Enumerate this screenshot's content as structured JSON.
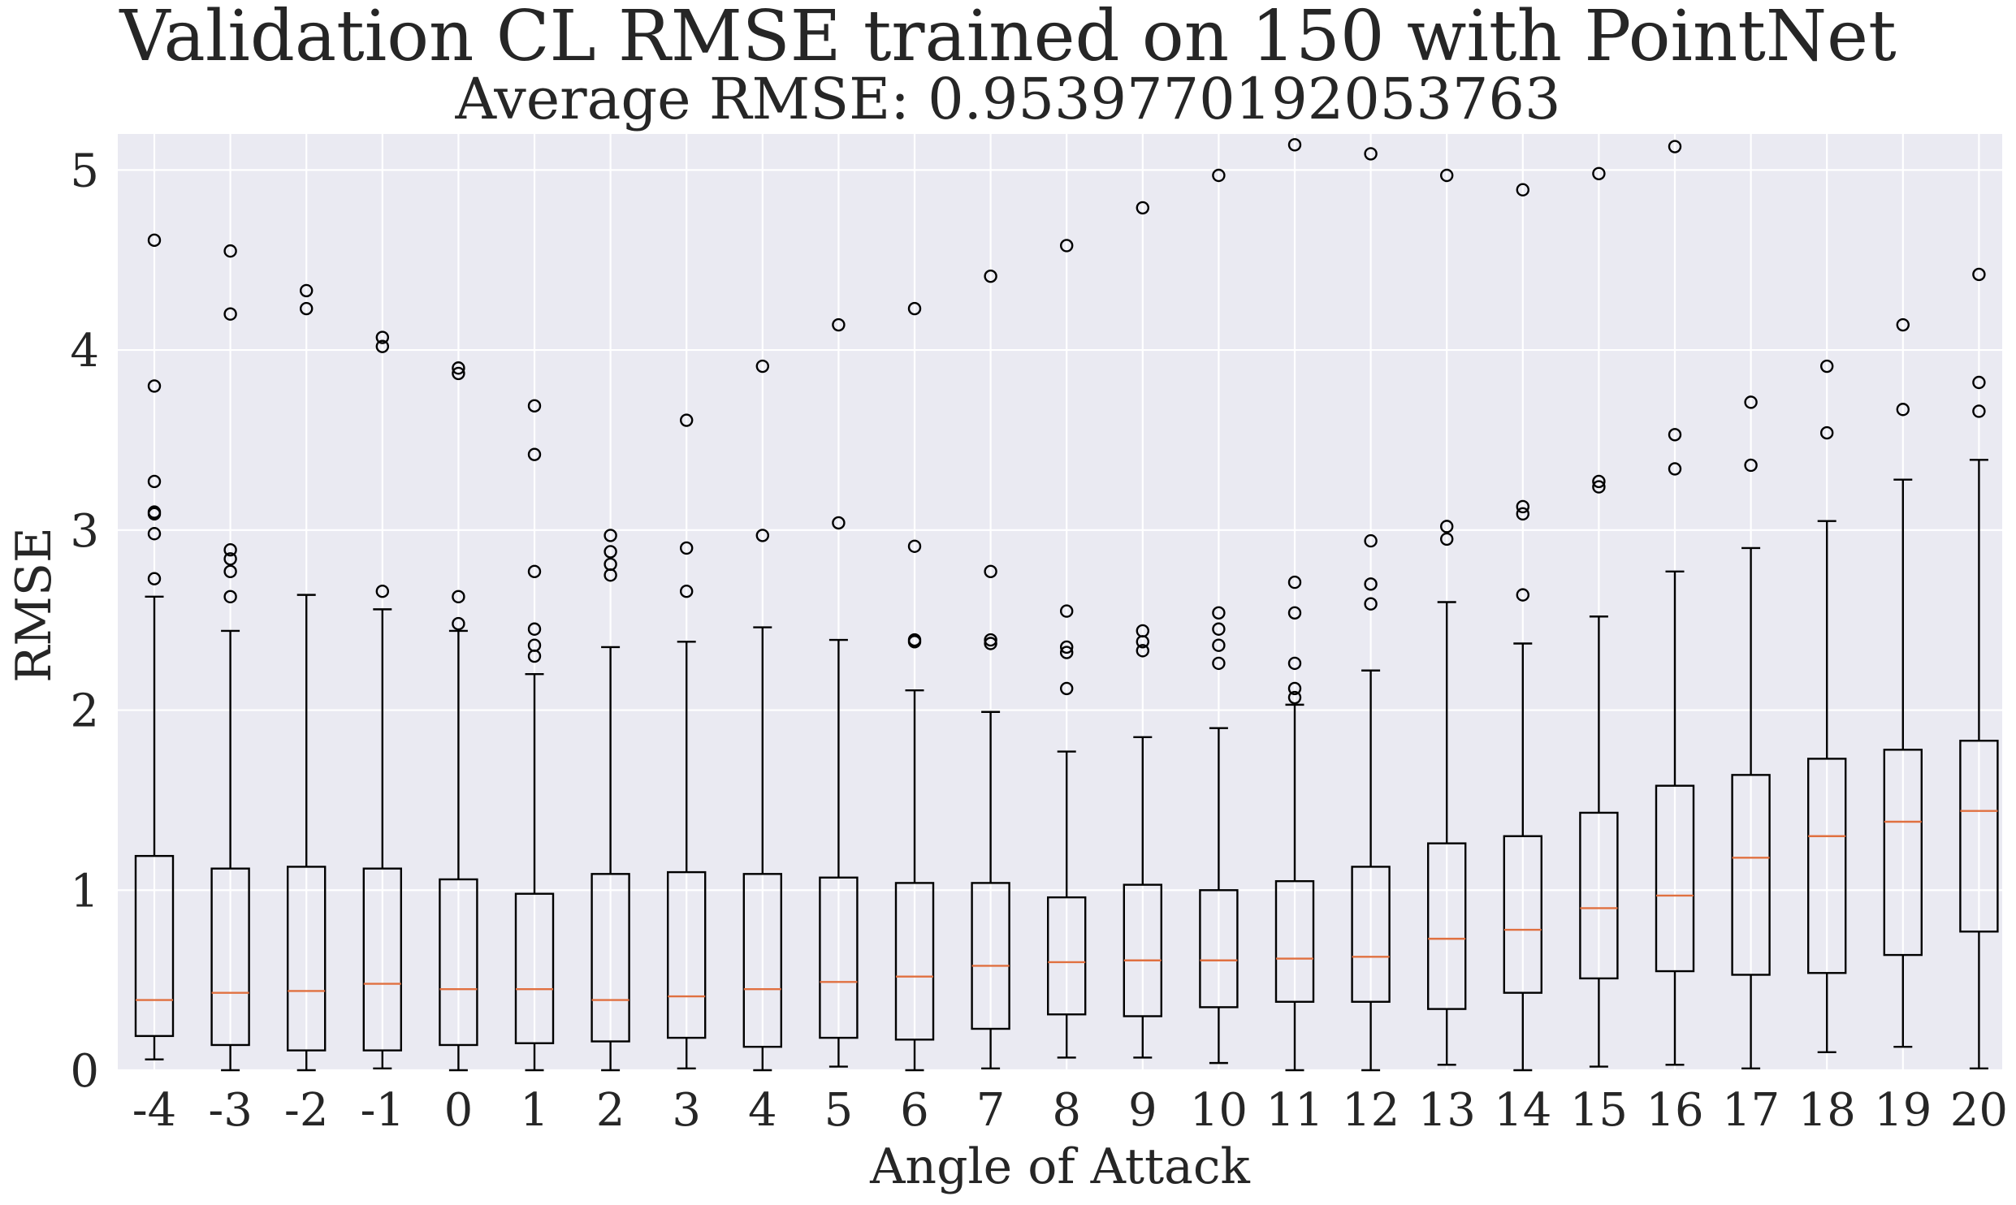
{
  "chart_data": {
    "type": "boxplot",
    "title": "Validation CL RMSE trained on 150 with PointNet",
    "subtitle": "Average RMSE:  0.9539770192053763",
    "xlabel": "Angle of Attack",
    "ylabel": "RMSE",
    "ylim": [
      0,
      5.2
    ],
    "yticks": [
      0,
      1,
      2,
      3,
      4,
      5
    ],
    "grid": true,
    "colors": {
      "background": "#eaeaf2",
      "grid": "#ffffff",
      "box": "#000000",
      "median": "#e07040",
      "text": "#262626"
    },
    "categories": [
      "-4",
      "-3",
      "-2",
      "-1",
      "0",
      "1",
      "2",
      "3",
      "4",
      "5",
      "6",
      "7",
      "8",
      "9",
      "10",
      "11",
      "12",
      "13",
      "14",
      "15",
      "16",
      "17",
      "18",
      "19",
      "20"
    ],
    "boxes": [
      {
        "label": "-4",
        "whislo": 0.06,
        "q1": 0.19,
        "med": 0.39,
        "q3": 1.19,
        "whishi": 2.63,
        "fliers": [
          2.73,
          2.98,
          3.09,
          3.1,
          3.27,
          3.8,
          4.61
        ]
      },
      {
        "label": "-3",
        "whislo": 0.0,
        "q1": 0.14,
        "med": 0.43,
        "q3": 1.12,
        "whishi": 2.44,
        "fliers": [
          2.63,
          2.77,
          2.84,
          2.89,
          4.2,
          4.55
        ]
      },
      {
        "label": "-2",
        "whislo": 0.0,
        "q1": 0.11,
        "med": 0.44,
        "q3": 1.13,
        "whishi": 2.64,
        "fliers": [
          4.23,
          4.33
        ]
      },
      {
        "label": "-1",
        "whislo": 0.01,
        "q1": 0.11,
        "med": 0.48,
        "q3": 1.12,
        "whishi": 2.56,
        "fliers": [
          2.66,
          4.02,
          4.07
        ]
      },
      {
        "label": "0",
        "whislo": 0.0,
        "q1": 0.14,
        "med": 0.45,
        "q3": 1.06,
        "whishi": 2.44,
        "fliers": [
          2.48,
          2.63,
          3.87,
          3.9
        ]
      },
      {
        "label": "1",
        "whislo": 0.0,
        "q1": 0.15,
        "med": 0.45,
        "q3": 0.98,
        "whishi": 2.2,
        "fliers": [
          2.3,
          2.36,
          2.45,
          2.77,
          3.42,
          3.69
        ]
      },
      {
        "label": "2",
        "whislo": 0.0,
        "q1": 0.16,
        "med": 0.39,
        "q3": 1.09,
        "whishi": 2.35,
        "fliers": [
          2.75,
          2.81,
          2.88,
          2.97
        ]
      },
      {
        "label": "3",
        "whislo": 0.01,
        "q1": 0.18,
        "med": 0.41,
        "q3": 1.1,
        "whishi": 2.38,
        "fliers": [
          2.66,
          2.9,
          3.61
        ]
      },
      {
        "label": "4",
        "whislo": 0.0,
        "q1": 0.13,
        "med": 0.45,
        "q3": 1.09,
        "whishi": 2.46,
        "fliers": [
          2.97,
          3.91
        ]
      },
      {
        "label": "5",
        "whislo": 0.02,
        "q1": 0.18,
        "med": 0.49,
        "q3": 1.07,
        "whishi": 2.39,
        "fliers": [
          3.04,
          4.14
        ]
      },
      {
        "label": "6",
        "whislo": 0.0,
        "q1": 0.17,
        "med": 0.52,
        "q3": 1.04,
        "whishi": 2.11,
        "fliers": [
          2.38,
          2.39,
          2.91,
          4.23
        ]
      },
      {
        "label": "7",
        "whislo": 0.01,
        "q1": 0.23,
        "med": 0.58,
        "q3": 1.04,
        "whishi": 1.99,
        "fliers": [
          2.37,
          2.39,
          2.77,
          4.41
        ]
      },
      {
        "label": "8",
        "whislo": 0.07,
        "q1": 0.31,
        "med": 0.6,
        "q3": 0.96,
        "whishi": 1.77,
        "fliers": [
          2.12,
          2.32,
          2.35,
          2.55,
          4.58
        ]
      },
      {
        "label": "9",
        "whislo": 0.07,
        "q1": 0.3,
        "med": 0.61,
        "q3": 1.03,
        "whishi": 1.85,
        "fliers": [
          2.33,
          2.38,
          2.44,
          4.79
        ]
      },
      {
        "label": "10",
        "whislo": 0.04,
        "q1": 0.35,
        "med": 0.61,
        "q3": 1.0,
        "whishi": 1.9,
        "fliers": [
          2.26,
          2.36,
          2.45,
          2.54,
          4.97
        ]
      },
      {
        "label": "11",
        "whislo": 0.0,
        "q1": 0.38,
        "med": 0.62,
        "q3": 1.05,
        "whishi": 2.03,
        "fliers": [
          2.07,
          2.12,
          2.26,
          2.54,
          2.71,
          5.14
        ]
      },
      {
        "label": "12",
        "whislo": 0.0,
        "q1": 0.38,
        "med": 0.63,
        "q3": 1.13,
        "whishi": 2.22,
        "fliers": [
          2.59,
          2.7,
          2.94,
          5.09
        ]
      },
      {
        "label": "13",
        "whislo": 0.03,
        "q1": 0.34,
        "med": 0.73,
        "q3": 1.26,
        "whishi": 2.6,
        "fliers": [
          2.95,
          3.02,
          4.97
        ]
      },
      {
        "label": "14",
        "whislo": 0.0,
        "q1": 0.43,
        "med": 0.78,
        "q3": 1.3,
        "whishi": 2.37,
        "fliers": [
          2.64,
          3.09,
          3.13,
          4.89
        ]
      },
      {
        "label": "15",
        "whislo": 0.02,
        "q1": 0.51,
        "med": 0.9,
        "q3": 1.43,
        "whishi": 2.52,
        "fliers": [
          3.24,
          3.27,
          4.98
        ]
      },
      {
        "label": "16",
        "whislo": 0.03,
        "q1": 0.55,
        "med": 0.97,
        "q3": 1.58,
        "whishi": 2.77,
        "fliers": [
          3.34,
          3.53,
          5.13
        ]
      },
      {
        "label": "17",
        "whislo": 0.01,
        "q1": 0.53,
        "med": 1.18,
        "q3": 1.64,
        "whishi": 2.9,
        "fliers": [
          3.36,
          3.71
        ]
      },
      {
        "label": "18",
        "whislo": 0.1,
        "q1": 0.54,
        "med": 1.3,
        "q3": 1.73,
        "whishi": 3.05,
        "fliers": [
          3.54,
          3.91
        ]
      },
      {
        "label": "19",
        "whislo": 0.13,
        "q1": 0.64,
        "med": 1.38,
        "q3": 1.78,
        "whishi": 3.28,
        "fliers": [
          3.67,
          4.14
        ]
      },
      {
        "label": "20",
        "whislo": 0.01,
        "q1": 0.77,
        "med": 1.44,
        "q3": 1.83,
        "whishi": 3.39,
        "fliers": [
          3.66,
          3.82,
          4.42
        ]
      }
    ]
  }
}
